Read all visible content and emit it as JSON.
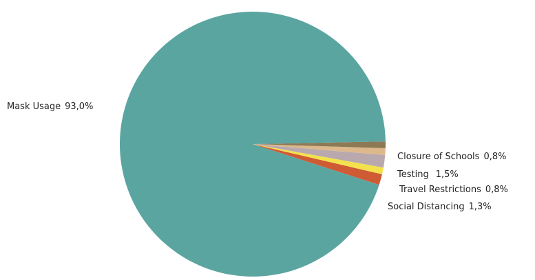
{
  "chart_data": {
    "type": "pie",
    "title": "",
    "slices": [
      {
        "label": "Mask Usage",
        "value": 93.0,
        "display": "93,0%",
        "color": "#5ba5a1"
      },
      {
        "label": "Social Distancing",
        "value": 1.3,
        "display": "1,3%",
        "color": "#cf5b35"
      },
      {
        "label": "Travel Restrictions",
        "value": 0.8,
        "display": "0,8%",
        "color": "#f3e24c"
      },
      {
        "label": "Testing",
        "value": 1.5,
        "display": "1,5%",
        "color": "#b9a9ae"
      },
      {
        "label": "Closure of Schools",
        "value": 0.8,
        "display": "0,8%",
        "color": "#ddb88b"
      },
      {
        "label": "",
        "value": 0.8,
        "display": "",
        "color": "#8d7a55"
      }
    ]
  }
}
